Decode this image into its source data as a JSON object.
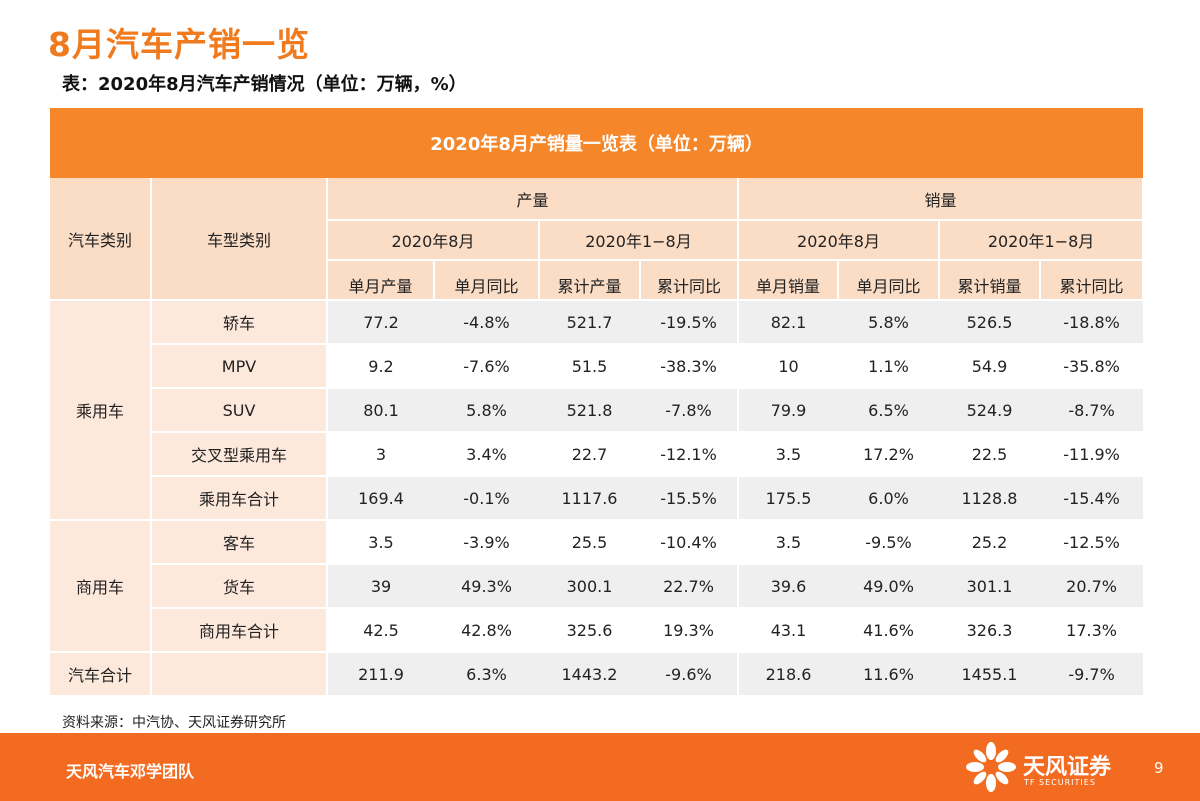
{
  "page": {
    "title": "8月汽车产销一览",
    "caption": "表：2020年8月汽车产销情况（单位：万辆，%）",
    "source": "资料来源：中汽协、天风证券研究所"
  },
  "table": {
    "banner": "2020年8月产销量一览表（单位：万辆）",
    "header": {
      "col_category": "汽车类别",
      "col_type": "车型类别",
      "production": "产量",
      "sales": "销量",
      "periods": [
        "2020年8月",
        "2020年1−8月",
        "2020年8月",
        "2020年1−8月"
      ],
      "metrics": [
        "单月产量",
        "单月同比",
        "累计产量",
        "累计同比",
        "单月销量",
        "单月同比",
        "累计销量",
        "累计同比"
      ]
    },
    "groups": [
      {
        "category": "乘用车",
        "rows": [
          {
            "type": "轿车",
            "values": [
              "77.2",
              "-4.8%",
              "521.7",
              "-19.5%",
              "82.1",
              "5.8%",
              "526.5",
              "-18.8%"
            ]
          },
          {
            "type": "MPV",
            "values": [
              "9.2",
              "-7.6%",
              "51.5",
              "-38.3%",
              "10",
              "1.1%",
              "54.9",
              "-35.8%"
            ]
          },
          {
            "type": "SUV",
            "values": [
              "80.1",
              "5.8%",
              "521.8",
              "-7.8%",
              "79.9",
              "6.5%",
              "524.9",
              "-8.7%"
            ]
          },
          {
            "type": "交叉型乘用车",
            "values": [
              "3",
              "3.4%",
              "22.7",
              "-12.1%",
              "3.5",
              "17.2%",
              "22.5",
              "-11.9%"
            ]
          },
          {
            "type": "乘用车合计",
            "values": [
              "169.4",
              "-0.1%",
              "1117.6",
              "-15.5%",
              "175.5",
              "6.0%",
              "1128.8",
              "-15.4%"
            ]
          }
        ]
      },
      {
        "category": "商用车",
        "rows": [
          {
            "type": "客车",
            "values": [
              "3.5",
              "-3.9%",
              "25.5",
              "-10.4%",
              "3.5",
              "-9.5%",
              "25.2",
              "-12.5%"
            ]
          },
          {
            "type": "货车",
            "values": [
              "39",
              "49.3%",
              "300.1",
              "22.7%",
              "39.6",
              "49.0%",
              "301.1",
              "20.7%"
            ]
          },
          {
            "type": "商用车合计",
            "values": [
              "42.5",
              "42.8%",
              "325.6",
              "19.3%",
              "43.1",
              "41.6%",
              "326.3",
              "17.3%"
            ]
          }
        ]
      }
    ],
    "total": {
      "category": "汽车合计",
      "values": [
        "211.9",
        "6.3%",
        "1443.2",
        "-9.6%",
        "218.6",
        "11.6%",
        "1455.1",
        "-9.7%"
      ]
    }
  },
  "footer": {
    "team": "天风汽车邓学团队",
    "logo_text": "天风证券",
    "logo_sub": "TF SECURITIES",
    "page_number": "9"
  },
  "colors": {
    "accent": "#f07b1e",
    "banner": "#f5862a",
    "footer": "#f26b21",
    "header_fill": "#fbdcc5",
    "row_fill": "#efefef"
  }
}
